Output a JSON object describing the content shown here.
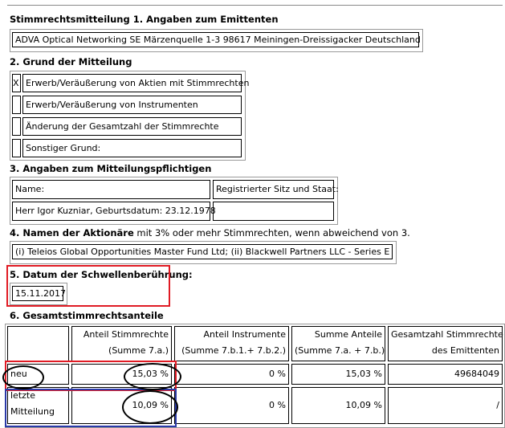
{
  "section1": {
    "title": "Stimmrechtsmitteilung 1. Angaben zum Emittenten",
    "issuer": "ADVA Optical Networking SE Märzenquelle 1-3 98617 Meiningen-Dreissigacker Deutschland"
  },
  "section2": {
    "title": "2. Grund der Mitteilung",
    "items": [
      {
        "check": "X",
        "label": "Erwerb/Veräußerung von Aktien mit Stimmrechten"
      },
      {
        "check": "",
        "label": "Erwerb/Veräußerung von Instrumenten"
      },
      {
        "check": "",
        "label": "Änderung der Gesamtzahl der Stimmrechte"
      },
      {
        "check": "",
        "label": "Sonstiger Grund:"
      }
    ]
  },
  "section3": {
    "title": "3. Angaben zum Mitteilungspflichtigen",
    "name_label": "Name:",
    "seat_label": "Registrierter Sitz und Staat:",
    "name_value": "Herr Igor Kuzniar, Geburtsdatum: 23.12.1978",
    "seat_value": ""
  },
  "section4": {
    "title_bold": "4. Namen der Aktionäre",
    "title_rest": " mit 3% oder mehr Stimmrechten, wenn abweichend von 3.",
    "value": "(i) Teleios Global Opportunities Master Fund Ltd; (ii) Blackwell Partners LLC - Series E"
  },
  "section5": {
    "title": "5. Datum der Schwellenberührung:",
    "date": "15.11.2017"
  },
  "section6": {
    "title": "6. Gesamtstimmrechtsanteile",
    "headers": [
      {
        "l1": "",
        "l2": ""
      },
      {
        "l1": "Anteil Stimmrechte",
        "l2": "(Summe 7.a.)"
      },
      {
        "l1": "Anteil Instrumente",
        "l2": "(Summe 7.b.1.+ 7.b.2.)"
      },
      {
        "l1": "Summe Anteile",
        "l2": "(Summe 7.a. + 7.b.)"
      },
      {
        "l1": "Gesamtzahl Stimmrechte",
        "l2": "des Emittenten"
      }
    ],
    "rows": [
      {
        "label": "neu",
        "voting": "15,03 %",
        "instruments": "0 %",
        "total": "15,03 %",
        "count": "49684049"
      },
      {
        "label_l1": "letzte",
        "label_l2": "Mitteilung",
        "voting": "10,09 %",
        "instruments": "0 %",
        "total": "10,09 %",
        "count": "/"
      }
    ]
  },
  "annotations": {
    "highlight_red": "#e01b24",
    "highlight_blue": "#2b3aa8"
  }
}
